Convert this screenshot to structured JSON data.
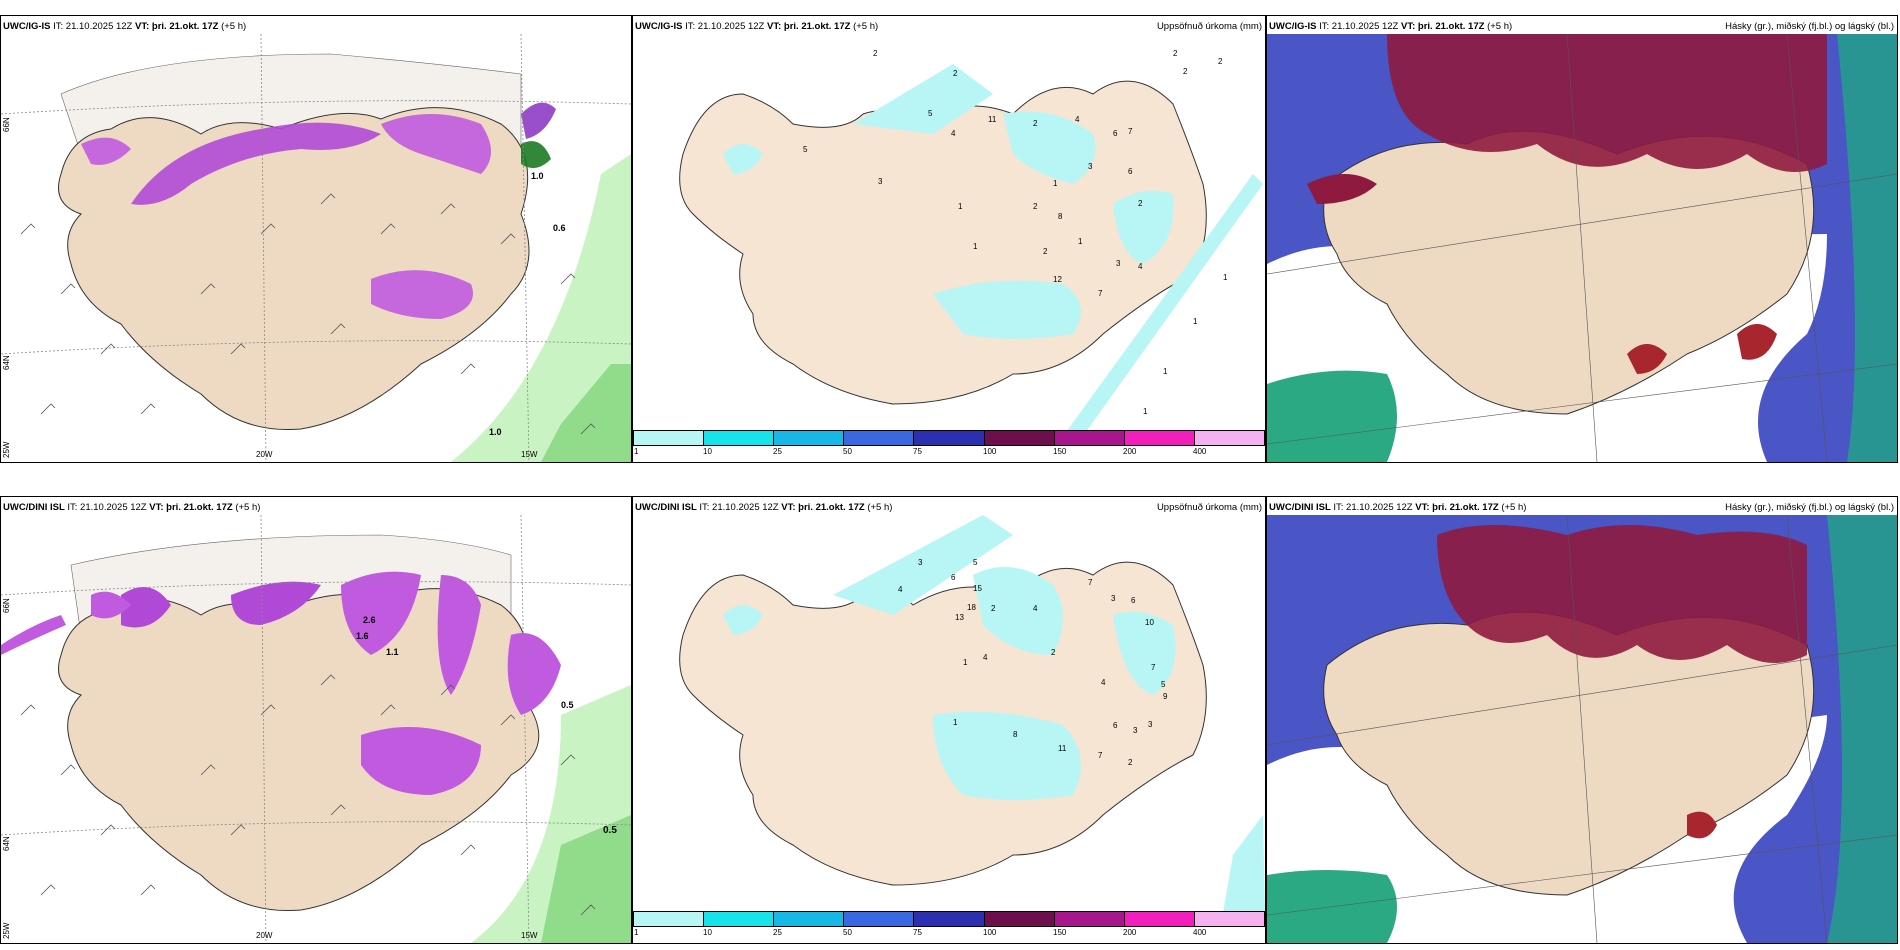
{
  "rows": [
    {
      "model": "UWC/IG-IS",
      "it_label": "IT: 21.10.2025 12Z",
      "vt_label": "VT: þri. 21.okt. 17Z",
      "lead": "(+5 h)",
      "wind_panel": {
        "lat_labels": [
          "66N",
          "64N"
        ],
        "lon_labels": [
          "20W",
          "15W"
        ],
        "side_labels": [
          "25W"
        ],
        "values": [
          "1.0",
          "0.6",
          "1.0"
        ]
      },
      "precip_panel": {
        "title": "Uppsöfnuð úrkoma (mm)",
        "numbers": [
          "2",
          "2",
          "2",
          "2",
          "2",
          "5",
          "4",
          "11",
          "2",
          "4",
          "6",
          "7",
          "3",
          "6",
          "1",
          "5",
          "2",
          "1",
          "3",
          "1",
          "2",
          "8",
          "1",
          "2",
          "12",
          "7",
          "3",
          "4",
          "1",
          "1",
          "1",
          "1"
        ]
      },
      "cloud_panel": {
        "title": "Hásky (gr.), miðský (fj.bl.) og lágský (bl.)"
      }
    },
    {
      "model": "UWC/DINI ISL",
      "it_label": "IT: 21.10.2025 12Z",
      "vt_label": "VT: þri. 21.okt. 17Z",
      "lead": "(+5 h)",
      "wind_panel": {
        "lat_labels": [
          "66N",
          "64N"
        ],
        "lon_labels": [
          "20W",
          "15W"
        ],
        "side_labels": [
          "25W"
        ],
        "values": [
          "2.6",
          "1.6",
          "1.1",
          "0.5",
          "0.5"
        ]
      },
      "precip_panel": {
        "title": "Uppsöfnuð úrkoma (mm)",
        "numbers": [
          "3",
          "5",
          "6",
          "15",
          "4",
          "13",
          "18",
          "2",
          "4",
          "7",
          "3",
          "6",
          "10",
          "4",
          "2",
          "1",
          "4",
          "7",
          "5",
          "9",
          "1",
          "8",
          "11",
          "6",
          "3",
          "3",
          "7",
          "2"
        ]
      },
      "cloud_panel": {
        "title": "Hásky (gr.), miðský (fj.bl.) og lágský (bl.)"
      }
    }
  ],
  "colorbar": {
    "ticks": [
      "1",
      "10",
      "25",
      "50",
      "75",
      "100",
      "150",
      "200",
      "400"
    ],
    "colors": [
      "#b8f5f5",
      "#17e3ea",
      "#18b8e6",
      "#3968e0",
      "#2b2fb0",
      "#6d0f4c",
      "#a7168d",
      "#f21fbd",
      "#f6b2f0"
    ]
  }
}
